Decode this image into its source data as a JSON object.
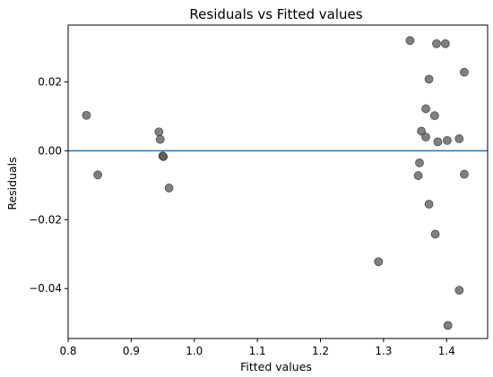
{
  "chart_data": {
    "type": "scatter",
    "title": "Residuals vs Fitted values",
    "xlabel": "Fitted values",
    "ylabel": "Residuals",
    "xlim": [
      0.8,
      1.465
    ],
    "ylim": [
      -0.0545,
      0.0365
    ],
    "xticks": [
      0.8,
      0.9,
      1.0,
      1.1,
      1.2,
      1.3,
      1.4
    ],
    "xtick_labels": [
      "0.8",
      "0.9",
      "1.0",
      "1.1",
      "1.2",
      "1.3",
      "1.4"
    ],
    "yticks": [
      -0.04,
      -0.02,
      0.0,
      0.02
    ],
    "ytick_labels": [
      "−0.04",
      "−0.02",
      "0.00",
      "0.02"
    ],
    "hline": 0.0,
    "grid": false,
    "point_color": "#555555",
    "line_color": "#1f77b4",
    "points": [
      {
        "x": 0.829,
        "y": 0.0103
      },
      {
        "x": 0.847,
        "y": -0.007
      },
      {
        "x": 0.944,
        "y": 0.0055
      },
      {
        "x": 0.946,
        "y": 0.0033
      },
      {
        "x": 0.95,
        "y": -0.0015
      },
      {
        "x": 0.951,
        "y": -0.0017
      },
      {
        "x": 0.96,
        "y": -0.0108
      },
      {
        "x": 1.292,
        "y": -0.0322
      },
      {
        "x": 1.342,
        "y": 0.032
      },
      {
        "x": 1.355,
        "y": -0.0072
      },
      {
        "x": 1.357,
        "y": -0.0035
      },
      {
        "x": 1.36,
        "y": 0.0057
      },
      {
        "x": 1.367,
        "y": 0.0122
      },
      {
        "x": 1.367,
        "y": 0.004
      },
      {
        "x": 1.372,
        "y": 0.0208
      },
      {
        "x": 1.372,
        "y": -0.0155
      },
      {
        "x": 1.381,
        "y": 0.0102
      },
      {
        "x": 1.382,
        "y": -0.0242
      },
      {
        "x": 1.384,
        "y": 0.0311
      },
      {
        "x": 1.386,
        "y": 0.0026
      },
      {
        "x": 1.398,
        "y": 0.0311
      },
      {
        "x": 1.401,
        "y": 0.003
      },
      {
        "x": 1.402,
        "y": -0.0507
      },
      {
        "x": 1.42,
        "y": 0.0035
      },
      {
        "x": 1.42,
        "y": -0.0405
      },
      {
        "x": 1.428,
        "y": 0.0228
      },
      {
        "x": 1.428,
        "y": -0.0068
      }
    ]
  }
}
